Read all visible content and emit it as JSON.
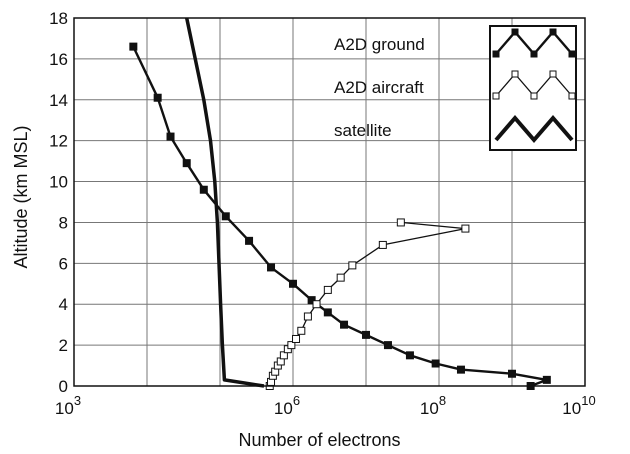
{
  "chart_data": {
    "type": "line",
    "xlabel": "Number of electrons",
    "ylabel": "Altitude  (km MSL)",
    "xscale": "log",
    "xlim": [
      1000,
      10000000000
    ],
    "ylim": [
      0,
      18
    ],
    "grid": true,
    "legend_position": "top-right",
    "x_tick_values": [
      1000,
      1000000,
      100000000,
      10000000000
    ],
    "x_tick_labels": [
      {
        "base": "10",
        "exp": "3"
      },
      {
        "base": "10",
        "exp": "6"
      },
      {
        "base": "10",
        "exp": "8"
      },
      {
        "base": "10",
        "exp": "10"
      }
    ],
    "x_grid_values": [
      10000,
      100000,
      1000000,
      10000000,
      100000000,
      1000000000
    ],
    "y_ticks": [
      "0",
      "2",
      "4",
      "6",
      "8",
      "10",
      "12",
      "14",
      "16",
      "18"
    ],
    "y_tick_values": [
      0,
      2,
      4,
      6,
      8,
      10,
      12,
      14,
      16,
      18
    ],
    "series": [
      {
        "name": "A2D ground",
        "style": "filled-square",
        "color": "#111111",
        "x": [
          1800000000,
          3000000000,
          1000000000,
          200000000,
          90000000,
          40000000,
          20000000,
          10000000,
          5000000,
          3000000,
          1800000,
          1000000,
          500000,
          250000,
          120000,
          60000,
          35000,
          21000,
          14000,
          6500
        ],
        "y": [
          0.0,
          0.3,
          0.6,
          0.8,
          1.1,
          1.5,
          2.0,
          2.5,
          3.0,
          3.6,
          4.2,
          5.0,
          5.8,
          7.1,
          8.3,
          9.6,
          10.9,
          12.2,
          14.1,
          16.6
        ]
      },
      {
        "name": "A2D aircraft",
        "style": "open-square",
        "color": "#111111",
        "x": [
          480000,
          500000,
          530000,
          570000,
          620000,
          680000,
          750000,
          850000,
          950000,
          1100000,
          1300000,
          1600000,
          2100000,
          3000000,
          4500000,
          6500000,
          17000000,
          230000000,
          30000000
        ],
        "y": [
          0.0,
          0.2,
          0.5,
          0.7,
          1.0,
          1.2,
          1.5,
          1.8,
          2.0,
          2.3,
          2.7,
          3.4,
          4.0,
          4.7,
          5.3,
          5.9,
          6.9,
          7.7,
          8.0
        ]
      },
      {
        "name": "satellite",
        "style": "thick-line",
        "color": "#111111",
        "x": [
          400000,
          115000,
          108000,
          102000,
          97000,
          92000,
          85000,
          74000,
          60000,
          35000
        ],
        "y": [
          0.0,
          0.3,
          2.0,
          4.0,
          6.0,
          8.0,
          10.0,
          12.0,
          14.0,
          18.0
        ]
      }
    ]
  }
}
